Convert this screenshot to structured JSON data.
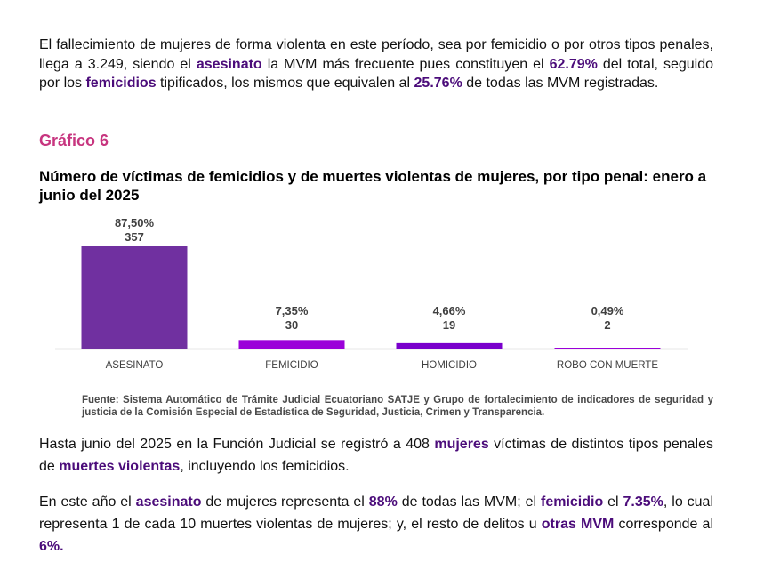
{
  "intro": {
    "t1": "El fallecimiento de mujeres de forma violenta en este período, sea por femicidio o por otros tipos penales, llega a 3.249, siendo el ",
    "b1": "asesinato",
    "t2": " la MVM más frecuente pues constituyen el ",
    "b2": "62.79%",
    "t3": " del total, seguido por los ",
    "b3": "femicidios",
    "t4": " tipificados, los mismos que equivalen al ",
    "b4": "25.76%",
    "t5": " de todas las MVM registradas."
  },
  "section_heading": "Gráfico 6",
  "chart_title": "Número de víctimas de femicidios y de muertes violentas de mujeres, por tipo penal: enero a junio del 2025",
  "chart_data": {
    "type": "bar",
    "title": "Número de víctimas de femicidios y de muertes violentas de mujeres, por tipo penal: enero a junio del 2025",
    "categories": [
      "ASESINATO",
      "FEMICIDIO",
      "HOMICIDIO",
      "ROBO CON MUERTE"
    ],
    "values": [
      357,
      30,
      19,
      2
    ],
    "percent_labels": [
      "87,50%",
      "7,35%",
      "4,66%",
      "0,49%"
    ],
    "value_labels": [
      "357",
      "30",
      "19",
      "2"
    ],
    "colors": [
      "#7030a0",
      "#9b00d9",
      "#7a00cc",
      "#9b00d9"
    ],
    "ylim": [
      0,
      357
    ],
    "grid": false,
    "legend": "none"
  },
  "source_note": "Fuente: Sistema Automático de Trámite Judicial Ecuatoriano SATJE y Grupo de fortalecimiento de indicadores de seguridad y justicia de la Comisión Especial de Estadística de Seguridad, Justicia, Crimen y Transparencia.",
  "para2": {
    "t1": "Hasta junio del 2025 en la Función Judicial se registró a 408 ",
    "b1": "mujeres",
    "t2": " víctimas de distintos tipos penales de ",
    "b2": "muertes violentas",
    "t3": ", incluyendo los femicidios."
  },
  "para3": {
    "t1": "En este año el ",
    "b1": "asesinato",
    "t2": " de mujeres representa el ",
    "b2": "88%",
    "t3": " de todas las MVM; el ",
    "b3": "femicidio",
    "t4": " el ",
    "b4": "7.35%",
    "t5": ", lo cual representa 1 de cada 10 muertes violentas de mujeres; y, el resto de delitos u ",
    "b5": "otras MVM",
    "t6": " corresponde al ",
    "b6": "6%."
  }
}
